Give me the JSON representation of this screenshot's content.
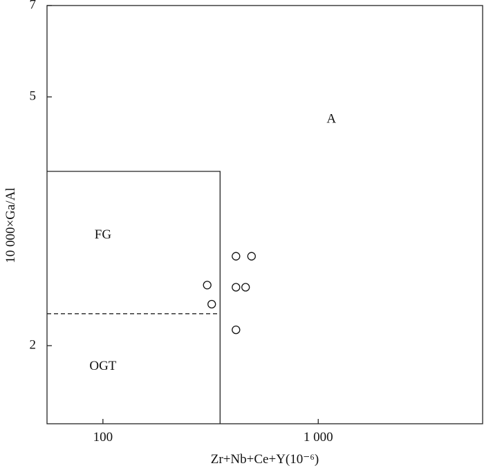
{
  "chart_data": {
    "type": "scatter",
    "title": "",
    "xlabel": "Zr+Nb+Ce+Y(10⁻⁶)",
    "ylabel": "10 000×Ga/Al",
    "x_scale": "log",
    "y_scale": "log",
    "xlim": [
      55,
      5800
    ],
    "ylim": [
      1.5,
      7
    ],
    "x_ticks": [
      {
        "value": 100,
        "label": "100"
      },
      {
        "value": 1000,
        "label": "1 000"
      }
    ],
    "y_ticks": [
      {
        "value": 2,
        "label": "2"
      },
      {
        "value": 5,
        "label": "5"
      },
      {
        "value": 7,
        "label": "7"
      }
    ],
    "grid": false,
    "regions": [
      {
        "label": "A",
        "label_at": [
          1150,
          4.6
        ]
      },
      {
        "label": "FG",
        "label_at": [
          100,
          3.0
        ]
      },
      {
        "label": "OGT",
        "label_at": [
          100,
          1.85
        ]
      }
    ],
    "boundaries": [
      {
        "style": "solid",
        "points": [
          [
            55,
            3.8
          ],
          [
            350,
            3.8
          ],
          [
            350,
            1.5
          ]
        ]
      },
      {
        "style": "dashed",
        "points": [
          [
            55,
            2.25
          ],
          [
            350,
            2.25
          ]
        ]
      }
    ],
    "points": [
      {
        "x": 415,
        "y": 2.78
      },
      {
        "x": 490,
        "y": 2.78
      },
      {
        "x": 305,
        "y": 2.5
      },
      {
        "x": 415,
        "y": 2.48
      },
      {
        "x": 460,
        "y": 2.48
      },
      {
        "x": 320,
        "y": 2.33
      },
      {
        "x": 415,
        "y": 2.12
      }
    ]
  }
}
